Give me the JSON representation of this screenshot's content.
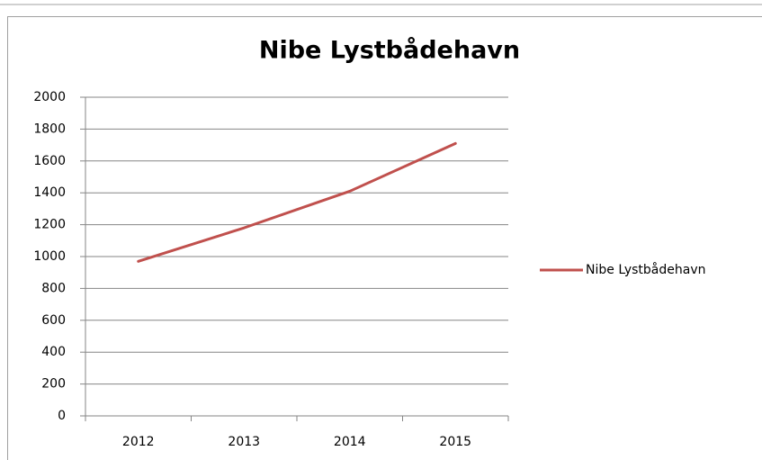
{
  "chart_data": {
    "type": "line",
    "title": "Nibe Lystbådehavn",
    "categories": [
      "2012",
      "2013",
      "2014",
      "2015"
    ],
    "series": [
      {
        "name": "Nibe Lystbådehavn",
        "color": "#c0504d",
        "values": [
          970,
          1180,
          1410,
          1710
        ]
      }
    ],
    "ylim": [
      0,
      2000
    ],
    "yticks": [
      0,
      200,
      400,
      600,
      800,
      1000,
      1200,
      1400,
      1600,
      1800,
      2000
    ],
    "grid": true,
    "legend": "right"
  }
}
